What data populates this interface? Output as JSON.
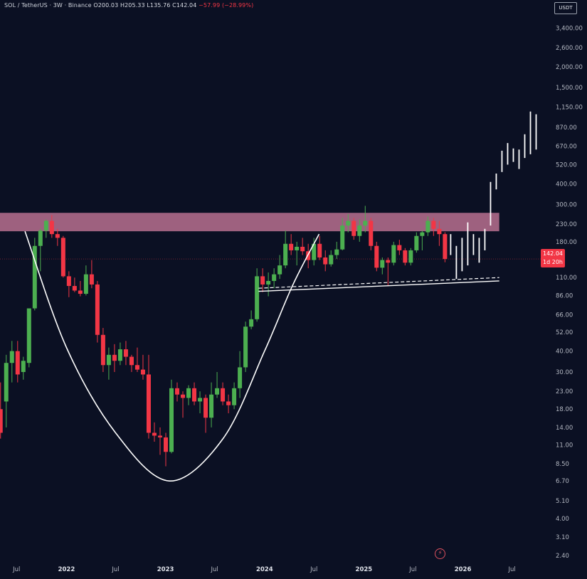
{
  "header": {
    "symbol": "SOL / TetherUS · 3W · Binance",
    "open": "O200.03",
    "high": "H205.33",
    "low": "L135.76",
    "close": "C142.04",
    "change": "−57.99 (−28.99%)",
    "unit_button": "USDT"
  },
  "price_tag": {
    "price": "142.04",
    "countdown": "1d 20h"
  },
  "colors": {
    "up": "#4caf50",
    "down": "#f23645",
    "resistance_zone": "#b8708f",
    "projection": "#ffffff",
    "background": "#0b1023"
  },
  "icons": {
    "bolt": "lightning-icon"
  },
  "chart_data": {
    "type": "candlestick",
    "y_scale": "log",
    "ylim": [
      2.2,
      4200
    ],
    "xlim": [
      "2021-05-01",
      "2026-10-15"
    ],
    "y_ticks": [
      2.4,
      3.1,
      4.0,
      5.1,
      6.7,
      8.5,
      11.0,
      14.0,
      18.0,
      23.0,
      30.0,
      40.0,
      52.0,
      66.0,
      86.0,
      110.0,
      142.04,
      180.0,
      230.0,
      300.0,
      400.0,
      520.0,
      670.0,
      870.0,
      1150.0,
      1500.0,
      2000.0,
      2600.0,
      3400.0
    ],
    "y_tick_labels": [
      "2.40",
      "3.10",
      "4.00",
      "5.10",
      "6.70",
      "8.50",
      "11.00",
      "14.00",
      "18.00",
      "23.00",
      "30.00",
      "40.00",
      "52.00",
      "66.00",
      "86.00",
      "110.00",
      "",
      "180.00",
      "230.00",
      "300.00",
      "400.00",
      "520.00",
      "670.00",
      "870.00",
      "1,150.00",
      "1,500.00",
      "2,000.00",
      "2,600.00",
      "3,400.00"
    ],
    "x_ticks": [
      {
        "date": "2021-07-01",
        "label": "Jul",
        "year": false
      },
      {
        "date": "2022-01-01",
        "label": "2022",
        "year": true
      },
      {
        "date": "2022-07-01",
        "label": "Jul",
        "year": false
      },
      {
        "date": "2023-01-01",
        "label": "2023",
        "year": true
      },
      {
        "date": "2023-07-01",
        "label": "Jul",
        "year": false
      },
      {
        "date": "2024-01-01",
        "label": "2024",
        "year": true
      },
      {
        "date": "2024-07-01",
        "label": "Jul",
        "year": false
      },
      {
        "date": "2025-01-01",
        "label": "2025",
        "year": true
      },
      {
        "date": "2025-07-01",
        "label": "Jul",
        "year": false
      },
      {
        "date": "2026-01-01",
        "label": "2026",
        "year": true
      },
      {
        "date": "2026-07-01",
        "label": "Jul",
        "year": false
      }
    ],
    "candles": [
      {
        "t": "2021-05-03",
        "o": 18,
        "h": 26,
        "l": 12,
        "c": 13
      },
      {
        "t": "2021-05-24",
        "o": 20,
        "h": 38,
        "l": 14,
        "c": 34
      },
      {
        "t": "2021-06-14",
        "o": 34,
        "h": 46,
        "l": 26,
        "c": 40
      },
      {
        "t": "2021-07-05",
        "o": 40,
        "h": 46,
        "l": 26,
        "c": 29
      },
      {
        "t": "2021-07-26",
        "o": 30,
        "h": 37,
        "l": 27,
        "c": 35
      },
      {
        "t": "2021-08-16",
        "o": 34,
        "h": 70,
        "l": 32,
        "c": 72
      },
      {
        "t": "2021-09-06",
        "o": 72,
        "h": 190,
        "l": 70,
        "c": 170
      },
      {
        "t": "2021-09-27",
        "o": 170,
        "h": 215,
        "l": 120,
        "c": 210
      },
      {
        "t": "2021-10-18",
        "o": 210,
        "h": 245,
        "l": 190,
        "c": 240
      },
      {
        "t": "2021-11-08",
        "o": 240,
        "h": 260,
        "l": 190,
        "c": 200
      },
      {
        "t": "2021-11-29",
        "o": 200,
        "h": 215,
        "l": 170,
        "c": 190
      },
      {
        "t": "2021-12-20",
        "o": 190,
        "h": 195,
        "l": 110,
        "c": 112
      },
      {
        "t": "2022-01-10",
        "o": 112,
        "h": 120,
        "l": 84,
        "c": 98
      },
      {
        "t": "2022-01-31",
        "o": 98,
        "h": 110,
        "l": 90,
        "c": 92
      },
      {
        "t": "2022-02-21",
        "o": 92,
        "h": 105,
        "l": 85,
        "c": 88
      },
      {
        "t": "2022-03-14",
        "o": 88,
        "h": 130,
        "l": 86,
        "c": 115
      },
      {
        "t": "2022-04-04",
        "o": 115,
        "h": 140,
        "l": 95,
        "c": 100
      },
      {
        "t": "2022-04-25",
        "o": 100,
        "h": 105,
        "l": 45,
        "c": 50
      },
      {
        "t": "2022-05-16",
        "o": 50,
        "h": 55,
        "l": 30,
        "c": 33
      },
      {
        "t": "2022-06-06",
        "o": 33,
        "h": 42,
        "l": 27,
        "c": 38
      },
      {
        "t": "2022-06-27",
        "o": 38,
        "h": 44,
        "l": 30,
        "c": 35
      },
      {
        "t": "2022-07-18",
        "o": 35,
        "h": 45,
        "l": 33,
        "c": 41
      },
      {
        "t": "2022-08-08",
        "o": 41,
        "h": 46,
        "l": 33,
        "c": 37
      },
      {
        "t": "2022-08-29",
        "o": 37,
        "h": 38,
        "l": 30,
        "c": 33
      },
      {
        "t": "2022-09-19",
        "o": 33,
        "h": 42,
        "l": 30,
        "c": 31
      },
      {
        "t": "2022-10-10",
        "o": 31,
        "h": 38,
        "l": 27,
        "c": 29
      },
      {
        "t": "2022-10-31",
        "o": 29,
        "h": 38,
        "l": 12,
        "c": 13
      },
      {
        "t": "2022-11-21",
        "o": 13,
        "h": 15,
        "l": 11.5,
        "c": 12.5
      },
      {
        "t": "2022-12-12",
        "o": 12.5,
        "h": 14,
        "l": 9.6,
        "c": 12.2
      },
      {
        "t": "2023-01-02",
        "o": 12.2,
        "h": 13,
        "l": 8.2,
        "c": 10
      },
      {
        "t": "2023-01-23",
        "o": 10,
        "h": 27,
        "l": 9.8,
        "c": 24
      },
      {
        "t": "2023-02-13",
        "o": 24,
        "h": 26,
        "l": 20,
        "c": 22
      },
      {
        "t": "2023-03-06",
        "o": 22,
        "h": 23,
        "l": 16,
        "c": 21
      },
      {
        "t": "2023-03-27",
        "o": 21,
        "h": 25,
        "l": 19,
        "c": 24
      },
      {
        "t": "2023-04-17",
        "o": 24,
        "h": 26,
        "l": 19,
        "c": 20
      },
      {
        "t": "2023-05-08",
        "o": 20,
        "h": 23,
        "l": 17,
        "c": 21
      },
      {
        "t": "2023-05-29",
        "o": 21,
        "h": 22,
        "l": 13,
        "c": 16
      },
      {
        "t": "2023-06-19",
        "o": 16,
        "h": 26,
        "l": 14,
        "c": 22
      },
      {
        "t": "2023-07-10",
        "o": 22,
        "h": 30,
        "l": 21,
        "c": 24
      },
      {
        "t": "2023-07-31",
        "o": 24,
        "h": 26,
        "l": 19,
        "c": 20
      },
      {
        "t": "2023-08-21",
        "o": 20,
        "h": 22,
        "l": 17,
        "c": 19
      },
      {
        "t": "2023-09-11",
        "o": 19,
        "h": 26,
        "l": 18,
        "c": 24
      },
      {
        "t": "2023-10-02",
        "o": 24,
        "h": 40,
        "l": 21,
        "c": 32
      },
      {
        "t": "2023-10-23",
        "o": 32,
        "h": 60,
        "l": 30,
        "c": 56
      },
      {
        "t": "2023-11-13",
        "o": 56,
        "h": 70,
        "l": 54,
        "c": 62
      },
      {
        "t": "2023-12-04",
        "o": 62,
        "h": 125,
        "l": 60,
        "c": 112
      },
      {
        "t": "2023-12-25",
        "o": 112,
        "h": 125,
        "l": 90,
        "c": 100
      },
      {
        "t": "2024-01-15",
        "o": 100,
        "h": 118,
        "l": 85,
        "c": 105
      },
      {
        "t": "2024-02-05",
        "o": 105,
        "h": 125,
        "l": 95,
        "c": 115
      },
      {
        "t": "2024-02-26",
        "o": 115,
        "h": 150,
        "l": 108,
        "c": 130
      },
      {
        "t": "2024-03-18",
        "o": 130,
        "h": 210,
        "l": 125,
        "c": 175
      },
      {
        "t": "2024-04-08",
        "o": 175,
        "h": 200,
        "l": 150,
        "c": 160
      },
      {
        "t": "2024-04-29",
        "o": 160,
        "h": 180,
        "l": 130,
        "c": 168
      },
      {
        "t": "2024-05-20",
        "o": 168,
        "h": 190,
        "l": 150,
        "c": 158
      },
      {
        "t": "2024-06-10",
        "o": 158,
        "h": 175,
        "l": 125,
        "c": 140
      },
      {
        "t": "2024-07-01",
        "o": 140,
        "h": 190,
        "l": 130,
        "c": 175
      },
      {
        "t": "2024-07-22",
        "o": 175,
        "h": 195,
        "l": 140,
        "c": 145
      },
      {
        "t": "2024-08-12",
        "o": 145,
        "h": 160,
        "l": 120,
        "c": 132
      },
      {
        "t": "2024-09-02",
        "o": 132,
        "h": 160,
        "l": 128,
        "c": 150
      },
      {
        "t": "2024-09-23",
        "o": 150,
        "h": 180,
        "l": 142,
        "c": 162
      },
      {
        "t": "2024-10-14",
        "o": 162,
        "h": 250,
        "l": 160,
        "c": 225
      },
      {
        "t": "2024-11-04",
        "o": 225,
        "h": 264,
        "l": 205,
        "c": 240
      },
      {
        "t": "2024-11-25",
        "o": 240,
        "h": 250,
        "l": 185,
        "c": 195
      },
      {
        "t": "2024-12-16",
        "o": 195,
        "h": 245,
        "l": 180,
        "c": 225
      },
      {
        "t": "2025-01-06",
        "o": 225,
        "h": 295,
        "l": 205,
        "c": 240
      },
      {
        "t": "2025-01-27",
        "o": 240,
        "h": 250,
        "l": 160,
        "c": 170
      },
      {
        "t": "2025-02-17",
        "o": 170,
        "h": 180,
        "l": 120,
        "c": 126
      },
      {
        "t": "2025-03-10",
        "o": 126,
        "h": 145,
        "l": 115,
        "c": 140
      },
      {
        "t": "2025-03-31",
        "o": 140,
        "h": 145,
        "l": 98,
        "c": 135
      },
      {
        "t": "2025-04-21",
        "o": 135,
        "h": 180,
        "l": 130,
        "c": 172
      },
      {
        "t": "2025-05-12",
        "o": 172,
        "h": 185,
        "l": 150,
        "c": 160
      },
      {
        "t": "2025-06-02",
        "o": 160,
        "h": 165,
        "l": 130,
        "c": 135
      },
      {
        "t": "2025-06-23",
        "o": 135,
        "h": 165,
        "l": 130,
        "c": 160
      },
      {
        "t": "2025-07-14",
        "o": 160,
        "h": 205,
        "l": 155,
        "c": 195
      },
      {
        "t": "2025-08-04",
        "o": 195,
        "h": 210,
        "l": 160,
        "c": 205
      },
      {
        "t": "2025-08-25",
        "o": 205,
        "h": 255,
        "l": 195,
        "c": 240
      },
      {
        "t": "2025-09-15",
        "o": 240,
        "h": 250,
        "l": 195,
        "c": 215
      },
      {
        "t": "2025-10-06",
        "o": 215,
        "h": 240,
        "l": 170,
        "c": 200
      },
      {
        "t": "2025-10-27",
        "o": 200,
        "h": 205.33,
        "l": 135.76,
        "c": 142.04
      }
    ],
    "projection_bars": [
      {
        "t": "2025-11-17",
        "h": 200,
        "l": 150
      },
      {
        "t": "2025-12-08",
        "h": 170,
        "l": 108
      },
      {
        "t": "2025-12-29",
        "h": 190,
        "l": 120
      },
      {
        "t": "2026-01-19",
        "h": 235,
        "l": 130
      },
      {
        "t": "2026-02-09",
        "h": 200,
        "l": 150
      },
      {
        "t": "2026-03-02",
        "h": 190,
        "l": 135
      },
      {
        "t": "2026-03-23",
        "h": 215,
        "l": 160
      },
      {
        "t": "2026-04-13",
        "h": 410,
        "l": 225
      },
      {
        "t": "2026-05-04",
        "h": 460,
        "l": 370
      },
      {
        "t": "2026-05-25",
        "h": 630,
        "l": 470
      },
      {
        "t": "2026-06-15",
        "h": 700,
        "l": 520
      },
      {
        "t": "2026-07-06",
        "h": 650,
        "l": 540
      },
      {
        "t": "2026-07-27",
        "h": 640,
        "l": 490
      },
      {
        "t": "2026-08-17",
        "h": 790,
        "l": 570
      },
      {
        "t": "2026-09-07",
        "h": 1080,
        "l": 600
      },
      {
        "t": "2026-09-28",
        "h": 1040,
        "l": 640
      }
    ],
    "resistance_zone": {
      "t_start": "2021-05-01",
      "t_end": "2026-05-15",
      "low": 208,
      "high": 268
    },
    "current_price_line": 142.04,
    "cup_curve": [
      {
        "t": "2021-08-01",
        "y": 208
      },
      {
        "t": "2022-01-01",
        "y": 42
      },
      {
        "t": "2022-07-01",
        "y": 13
      },
      {
        "t": "2023-01-15",
        "y": 6.7
      },
      {
        "t": "2023-08-01",
        "y": 12
      },
      {
        "t": "2024-01-01",
        "y": 40
      },
      {
        "t": "2024-04-15",
        "y": 100
      },
      {
        "t": "2024-07-20",
        "y": 200
      }
    ],
    "support_line": {
      "t_start": "2023-12-10",
      "y_start": 91,
      "t_end": "2026-05-15",
      "y_end": 105
    },
    "support_dashed_line": {
      "t_start": "2023-12-10",
      "y_start": 95,
      "t_end": "2026-05-15",
      "y_end": 110
    }
  }
}
